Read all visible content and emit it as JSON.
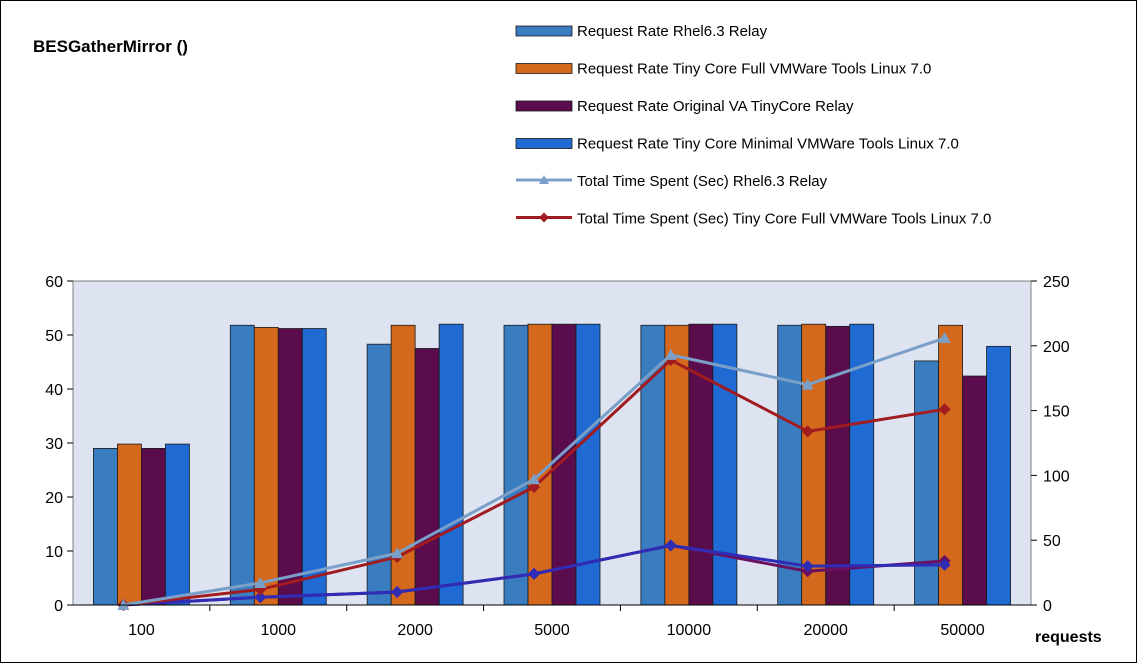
{
  "chart_data": {
    "type": "bar",
    "title": "BESGatherMirror ()",
    "xlabel": "requests",
    "categories": [
      "100",
      "1000",
      "2000",
      "5000",
      "10000",
      "20000",
      "50000"
    ],
    "y_left": {
      "lim": [
        0,
        60
      ],
      "ticks": [
        0,
        10,
        20,
        30,
        40,
        50,
        60
      ]
    },
    "y_right": {
      "lim": [
        0,
        250
      ],
      "ticks": [
        0,
        50,
        100,
        150,
        200,
        250
      ]
    },
    "grid": false,
    "legend_position": "top-right",
    "series": [
      {
        "name": "Request Rate Rhel6.3 Relay",
        "kind": "bar",
        "axis": "left",
        "color": "#3a7cc0",
        "values": [
          29,
          51.8,
          48.3,
          51.8,
          51.8,
          51.8,
          45.2
        ]
      },
      {
        "name": "Request Rate Tiny Core Full VMWare Tools Linux 7.0",
        "kind": "bar",
        "axis": "left",
        "color": "#d4691d",
        "values": [
          29.8,
          51.4,
          51.8,
          52,
          51.8,
          52,
          51.8
        ]
      },
      {
        "name": "Request Rate Original VA TinyCore  Relay",
        "kind": "bar",
        "axis": "left",
        "color": "#5a0c4c",
        "values": [
          29,
          51.2,
          47.5,
          52,
          52,
          51.6,
          42.4
        ]
      },
      {
        "name": "Request Rate Tiny Core Minimal VMWare Tools Linux 7.0",
        "kind": "bar",
        "axis": "left",
        "color": "#1f6ad3",
        "values": [
          29.8,
          51.2,
          52,
          52,
          52,
          52,
          47.9
        ]
      },
      {
        "name": "Total Time Spent (Sec) Rhel6.3 Relay",
        "kind": "line",
        "axis": "right",
        "color": "#7a9fc8",
        "marker": "triangle",
        "values": [
          0,
          17,
          40,
          97,
          193,
          170,
          206
        ]
      },
      {
        "name": "Total Time Spent (Sec) Tiny Core Full VMWare Tools Linux 7.0",
        "kind": "line",
        "axis": "right",
        "color": "#a11c20",
        "marker": "diamond",
        "values": [
          0,
          12,
          37,
          91,
          189,
          134,
          151
        ]
      },
      {
        "kind": "line",
        "axis": "right",
        "color": "#2f2cb5",
        "marker": "diamond",
        "values": [
          0,
          6,
          10,
          24,
          46,
          30,
          31
        ]
      },
      {
        "kind": "line",
        "axis": "right",
        "color": "#6a1060",
        "marker": "diamond",
        "values": [
          0,
          6,
          10,
          24,
          46,
          26,
          34
        ]
      }
    ]
  }
}
